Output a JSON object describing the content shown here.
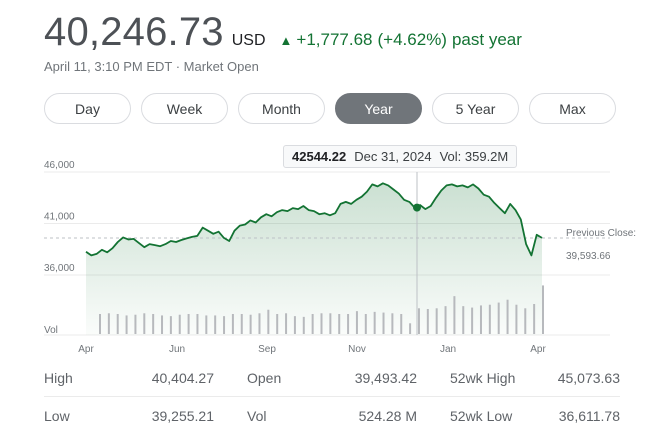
{
  "quote": {
    "price": "40,246.73",
    "currency": "USD",
    "change_arrow": "▲",
    "change": "+1,777.68",
    "change_pct": "(+4.62%)",
    "change_period": "past year",
    "timestamp": "April 11, 3:10 PM EDT · Market Open",
    "up_color": "#137333"
  },
  "tabs": [
    {
      "label": "Day",
      "active": false
    },
    {
      "label": "Week",
      "active": false
    },
    {
      "label": "Month",
      "active": false
    },
    {
      "label": "Year",
      "active": true
    },
    {
      "label": "5 Year",
      "active": false
    },
    {
      "label": "Max",
      "active": false
    }
  ],
  "tooltip": {
    "value": "42544.22",
    "date": "Dec 31, 2024",
    "vol": "Vol: 359.2M"
  },
  "chart_data": {
    "type": "area",
    "y_ticks": [
      "46,000",
      "41,000",
      "36,000"
    ],
    "y_tick_values": [
      46000,
      41000,
      36000
    ],
    "ylim": [
      36000,
      46000
    ],
    "x_ticks": [
      "Apr",
      "Jun",
      "Sep",
      "Nov",
      "Jan",
      "Apr"
    ],
    "vol_label": "Vol",
    "previous_close_label": "Previous Close:",
    "previous_close": "39,593.66",
    "previous_close_value": 39593.66,
    "line_color": "#137333",
    "series": [
      {
        "values": [
          38250,
          37900,
          38050,
          38450,
          38200,
          38600,
          39200,
          39650,
          39450,
          39500,
          39100,
          38700,
          39000,
          38900,
          38800,
          39000,
          39300,
          39200,
          39400,
          39550,
          39700,
          39800,
          40600,
          40300,
          40000,
          40200,
          39600,
          39300,
          40300,
          40800,
          40900,
          41300,
          41100,
          41600,
          41900,
          41700,
          42100,
          42300,
          42200,
          42500,
          42400,
          42700,
          42300,
          42200,
          41900,
          42000,
          41800,
          42000,
          42900,
          43100,
          42900,
          43300,
          43600,
          44100,
          44800,
          44600,
          44900,
          44700,
          44300,
          43900,
          43300,
          43100,
          42544,
          42800,
          42400,
          42700,
          43500,
          44200,
          44700,
          44800,
          44600,
          44700,
          44500,
          44800,
          44400,
          43800,
          43600,
          43000,
          42500,
          42000,
          42900,
          42300,
          41400,
          39000,
          37900,
          39900,
          39600
        ]
      }
    ],
    "volume": [
      2.8,
      2.9,
      2.8,
      2.6,
      2.7,
      2.9,
      2.8,
      2.6,
      2.5,
      2.7,
      2.8,
      2.8,
      2.6,
      2.6,
      2.5,
      2.8,
      2.8,
      2.7,
      2.9,
      3.4,
      2.8,
      2.9,
      2.5,
      2.4,
      2.8,
      2.9,
      2.9,
      2.8,
      2.8,
      3.2,
      2.8,
      3.1,
      3.0,
      2.9,
      2.8,
      1.5,
      3.6,
      3.5,
      3.6,
      3.9,
      5.3,
      3.9,
      3.7,
      4.0,
      4.1,
      4.4,
      4.8,
      4.1,
      3.6,
      4.2,
      6.8
    ]
  },
  "stats": [
    {
      "label": "High",
      "value": "40,404.27"
    },
    {
      "label": "Open",
      "value": "39,493.42"
    },
    {
      "label": "52wk High",
      "value": "45,073.63"
    },
    {
      "label": "Low",
      "value": "39,255.21"
    },
    {
      "label": "Vol",
      "value": "524.28 M"
    },
    {
      "label": "52wk Low",
      "value": "36,611.78"
    }
  ]
}
